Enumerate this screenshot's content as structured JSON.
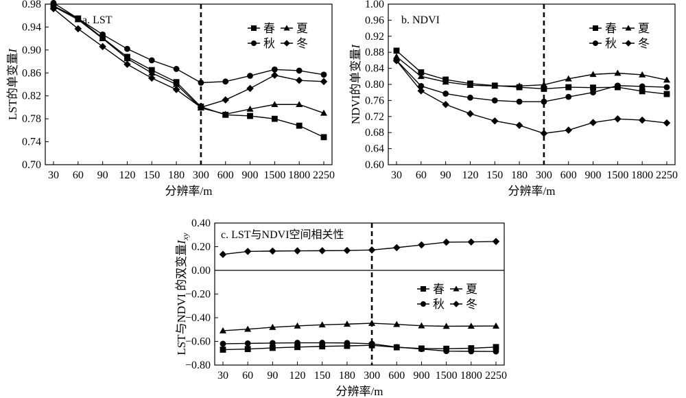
{
  "chart_data": [
    {
      "type": "line",
      "panel": "a",
      "title": "a. LST",
      "xlabel": "分辨率/m",
      "ylabel": "LST的单变量",
      "ylabel_italic": "I",
      "categories": [
        "30",
        "60",
        "90",
        "120",
        "150",
        "180",
        "300",
        "600",
        "900",
        "1500",
        "1800",
        "2250"
      ],
      "ylim": [
        0.7,
        0.98
      ],
      "yticks": [
        "0.70",
        "0.74",
        "0.78",
        "0.82",
        "0.86",
        "0.90",
        "0.94",
        "0.98"
      ],
      "divider_after": "300",
      "legend_position": "top-right",
      "grid": false,
      "series": [
        {
          "name": "春",
          "marker": "square",
          "values": [
            0.977,
            0.955,
            0.921,
            0.888,
            0.865,
            0.844,
            0.801,
            0.787,
            0.785,
            0.78,
            0.768,
            0.748
          ]
        },
        {
          "name": "夏",
          "marker": "triangle",
          "values": [
            0.976,
            0.953,
            0.92,
            0.885,
            0.86,
            0.84,
            0.799,
            0.788,
            0.797,
            0.805,
            0.805,
            0.79
          ]
        },
        {
          "name": "秋",
          "marker": "circle",
          "values": [
            0.982,
            0.955,
            0.927,
            0.902,
            0.882,
            0.867,
            0.843,
            0.845,
            0.855,
            0.866,
            0.864,
            0.857
          ]
        },
        {
          "name": "冬",
          "marker": "diamond",
          "values": [
            0.972,
            0.937,
            0.906,
            0.875,
            0.851,
            0.831,
            0.8,
            0.813,
            0.833,
            0.856,
            0.847,
            0.845
          ]
        }
      ]
    },
    {
      "type": "line",
      "panel": "b",
      "title": "b. NDVI",
      "xlabel": "分辨率/m",
      "ylabel": "NDVI的单变量",
      "ylabel_italic": "I",
      "categories": [
        "30",
        "60",
        "90",
        "120",
        "150",
        "180",
        "300",
        "600",
        "900",
        "1500",
        "1800",
        "2250"
      ],
      "ylim": [
        0.6,
        1.0
      ],
      "yticks": [
        "0.60",
        "0.64",
        "0.68",
        "0.72",
        "0.76",
        "0.80",
        "0.84",
        "0.88",
        "0.92",
        "0.96",
        "1.00"
      ],
      "divider_after": "300",
      "legend_position": "top-right",
      "grid": false,
      "series": [
        {
          "name": "春",
          "marker": "square",
          "values": [
            0.884,
            0.83,
            0.812,
            0.802,
            0.797,
            0.793,
            0.789,
            0.793,
            0.792,
            0.793,
            0.783,
            0.776
          ]
        },
        {
          "name": "夏",
          "marker": "triangle",
          "values": [
            0.869,
            0.82,
            0.806,
            0.798,
            0.796,
            0.796,
            0.799,
            0.814,
            0.825,
            0.828,
            0.824,
            0.811
          ]
        },
        {
          "name": "秋",
          "marker": "circle",
          "values": [
            0.86,
            0.796,
            0.777,
            0.767,
            0.76,
            0.757,
            0.757,
            0.769,
            0.78,
            0.797,
            0.795,
            0.793
          ]
        },
        {
          "name": "冬",
          "marker": "diamond",
          "values": [
            0.859,
            0.784,
            0.75,
            0.727,
            0.709,
            0.698,
            0.678,
            0.686,
            0.705,
            0.714,
            0.711,
            0.704
          ]
        }
      ]
    },
    {
      "type": "line",
      "panel": "c",
      "title": "c. LST与NDVI空间相关性",
      "xlabel": "分辨率/m",
      "ylabel": "LST与NDVI 的双变量",
      "ylabel_italic": "I",
      "ylabel_subscript": "xy",
      "categories": [
        "30",
        "60",
        "90",
        "120",
        "150",
        "180",
        "300",
        "600",
        "900",
        "1500",
        "1800",
        "2250"
      ],
      "ylim": [
        -0.8,
        0.4
      ],
      "yticks": [
        "−0.80",
        "−0.60",
        "−0.40",
        "−0.20",
        "0.00",
        "0.20",
        "0.40"
      ],
      "divider_after": "300",
      "legend_position": "right",
      "grid": false,
      "series": [
        {
          "name": "春",
          "marker": "square",
          "values": [
            -0.67,
            -0.665,
            -0.655,
            -0.648,
            -0.642,
            -0.638,
            -0.633,
            -0.65,
            -0.66,
            -0.662,
            -0.658,
            -0.648
          ]
        },
        {
          "name": "夏",
          "marker": "triangle",
          "values": [
            -0.51,
            -0.497,
            -0.481,
            -0.469,
            -0.46,
            -0.454,
            -0.447,
            -0.456,
            -0.468,
            -0.472,
            -0.471,
            -0.47
          ]
        },
        {
          "name": "秋",
          "marker": "circle",
          "values": [
            -0.62,
            -0.617,
            -0.614,
            -0.612,
            -0.612,
            -0.613,
            -0.62,
            -0.648,
            -0.665,
            -0.682,
            -0.684,
            -0.685
          ]
        },
        {
          "name": "冬",
          "marker": "diamond",
          "values": [
            0.135,
            0.16,
            0.163,
            0.165,
            0.166,
            0.168,
            0.172,
            0.192,
            0.215,
            0.238,
            0.24,
            0.244
          ]
        }
      ]
    }
  ]
}
